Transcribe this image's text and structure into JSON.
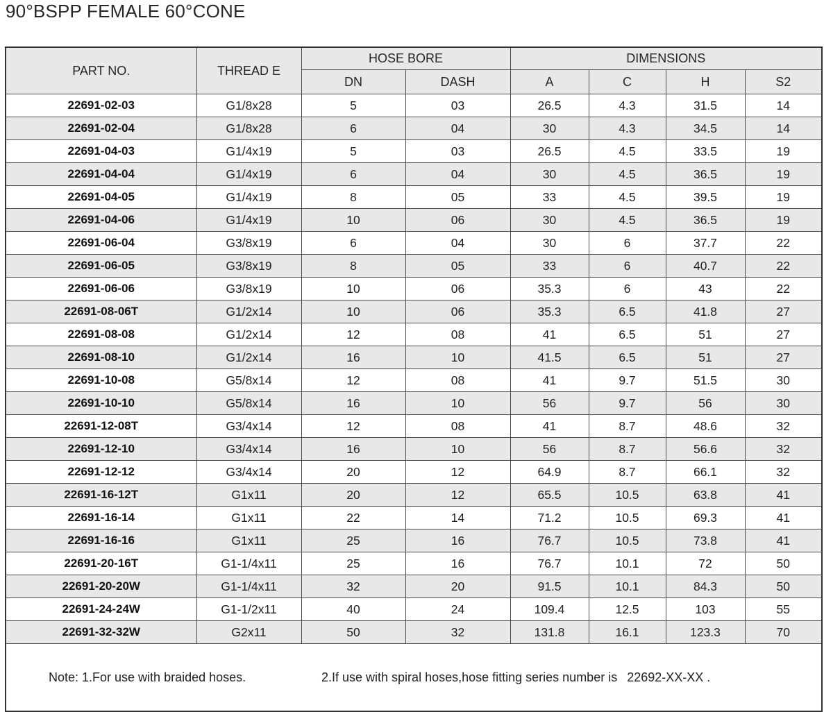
{
  "page": {
    "title": "90°BSPP FEMALE 60°CONE"
  },
  "colors": {
    "stripe_row": "#e8e8e8",
    "header_bg": "#e8e8e8",
    "inner_border": "#4a4a4a",
    "outer_border": "#333333",
    "text": "#1f1f1f"
  },
  "table": {
    "header": {
      "part_no": "PART NO.",
      "thread_e": "THREAD E",
      "hose_bore": "HOSE BORE",
      "dimensions": "DIMENSIONS",
      "dn": "DN",
      "dash": "DASH",
      "a": "A",
      "c": "C",
      "h": "H",
      "s2": "S2"
    },
    "column_keys": [
      "part-no",
      "thread-e",
      "dn",
      "dash",
      "dim-a",
      "dim-c",
      "dim-h",
      "dim-s2"
    ],
    "rows": [
      [
        "22691-02-03",
        "G1/8x28",
        "5",
        "03",
        "26.5",
        "4.3",
        "31.5",
        "14"
      ],
      [
        "22691-02-04",
        "G1/8x28",
        "6",
        "04",
        "30",
        "4.3",
        "34.5",
        "14"
      ],
      [
        "22691-04-03",
        "G1/4x19",
        "5",
        "03",
        "26.5",
        "4.5",
        "33.5",
        "19"
      ],
      [
        "22691-04-04",
        "G1/4x19",
        "6",
        "04",
        "30",
        "4.5",
        "36.5",
        "19"
      ],
      [
        "22691-04-05",
        "G1/4x19",
        "8",
        "05",
        "33",
        "4.5",
        "39.5",
        "19"
      ],
      [
        "22691-04-06",
        "G1/4x19",
        "10",
        "06",
        "30",
        "4.5",
        "36.5",
        "19"
      ],
      [
        "22691-06-04",
        "G3/8x19",
        "6",
        "04",
        "30",
        "6",
        "37.7",
        "22"
      ],
      [
        "22691-06-05",
        "G3/8x19",
        "8",
        "05",
        "33",
        "6",
        "40.7",
        "22"
      ],
      [
        "22691-06-06",
        "G3/8x19",
        "10",
        "06",
        "35.3",
        "6",
        "43",
        "22"
      ],
      [
        "22691-08-06T",
        "G1/2x14",
        "10",
        "06",
        "35.3",
        "6.5",
        "41.8",
        "27"
      ],
      [
        "22691-08-08",
        "G1/2x14",
        "12",
        "08",
        "41",
        "6.5",
        "51",
        "27"
      ],
      [
        "22691-08-10",
        "G1/2x14",
        "16",
        "10",
        "41.5",
        "6.5",
        "51",
        "27"
      ],
      [
        "22691-10-08",
        "G5/8x14",
        "12",
        "08",
        "41",
        "9.7",
        "51.5",
        "30"
      ],
      [
        "22691-10-10",
        "G5/8x14",
        "16",
        "10",
        "56",
        "9.7",
        "56",
        "30"
      ],
      [
        "22691-12-08T",
        "G3/4x14",
        "12",
        "08",
        "41",
        "8.7",
        "48.6",
        "32"
      ],
      [
        "22691-12-10",
        "G3/4x14",
        "16",
        "10",
        "56",
        "8.7",
        "56.6",
        "32"
      ],
      [
        "22691-12-12",
        "G3/4x14",
        "20",
        "12",
        "64.9",
        "8.7",
        "66.1",
        "32"
      ],
      [
        "22691-16-12T",
        "G1x11",
        "20",
        "12",
        "65.5",
        "10.5",
        "63.8",
        "41"
      ],
      [
        "22691-16-14",
        "G1x11",
        "22",
        "14",
        "71.2",
        "10.5",
        "69.3",
        "41"
      ],
      [
        "22691-16-16",
        "G1x11",
        "25",
        "16",
        "76.7",
        "10.5",
        "73.8",
        "41"
      ],
      [
        "22691-20-16T",
        "G1-1/4x11",
        "25",
        "16",
        "76.7",
        "10.1",
        "72",
        "50"
      ],
      [
        "22691-20-20W",
        "G1-1/4x11",
        "32",
        "20",
        "91.5",
        "10.1",
        "84.3",
        "50"
      ],
      [
        "22691-24-24W",
        "G1-1/2x11",
        "40",
        "24",
        "109.4",
        "12.5",
        "103",
        "55"
      ],
      [
        "22691-32-32W",
        "G2x11",
        "50",
        "32",
        "131.8",
        "16.1",
        "123.3",
        "70"
      ]
    ],
    "note": {
      "line1": "Note: 1.For use with braided hoses.",
      "line2": "2.If use with spiral hoses,hose fitting series number is",
      "series": "22692-XX-XX ."
    }
  }
}
